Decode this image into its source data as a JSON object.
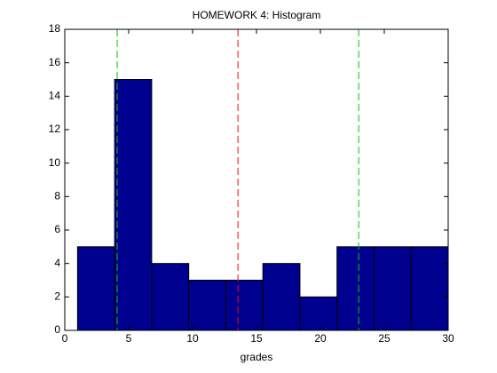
{
  "chart_data": {
    "type": "histogram",
    "title": "HOMEWORK 4: Histogram",
    "xlabel": "grades",
    "bins": [
      1,
      3.9,
      6.8,
      9.7,
      12.6,
      15.5,
      18.4,
      21.3,
      24.2,
      27.1,
      30
    ],
    "values": [
      5,
      15,
      4,
      3,
      3,
      4,
      2,
      5,
      5,
      5
    ],
    "color": "#00008f",
    "lines": [
      {
        "x": 4.1,
        "color": "#00cc00"
      },
      {
        "x": 13.55,
        "color": "#ff0000"
      },
      {
        "x": 23.0,
        "color": "#00cc00"
      }
    ],
    "xlim": [
      0,
      30
    ],
    "xticks": [
      0,
      5,
      10,
      15,
      20,
      25,
      30
    ],
    "ylim": [
      0,
      18
    ],
    "yticks": [
      0,
      2,
      4,
      6,
      8,
      10,
      12,
      14,
      16,
      18
    ],
    "grid": false
  }
}
